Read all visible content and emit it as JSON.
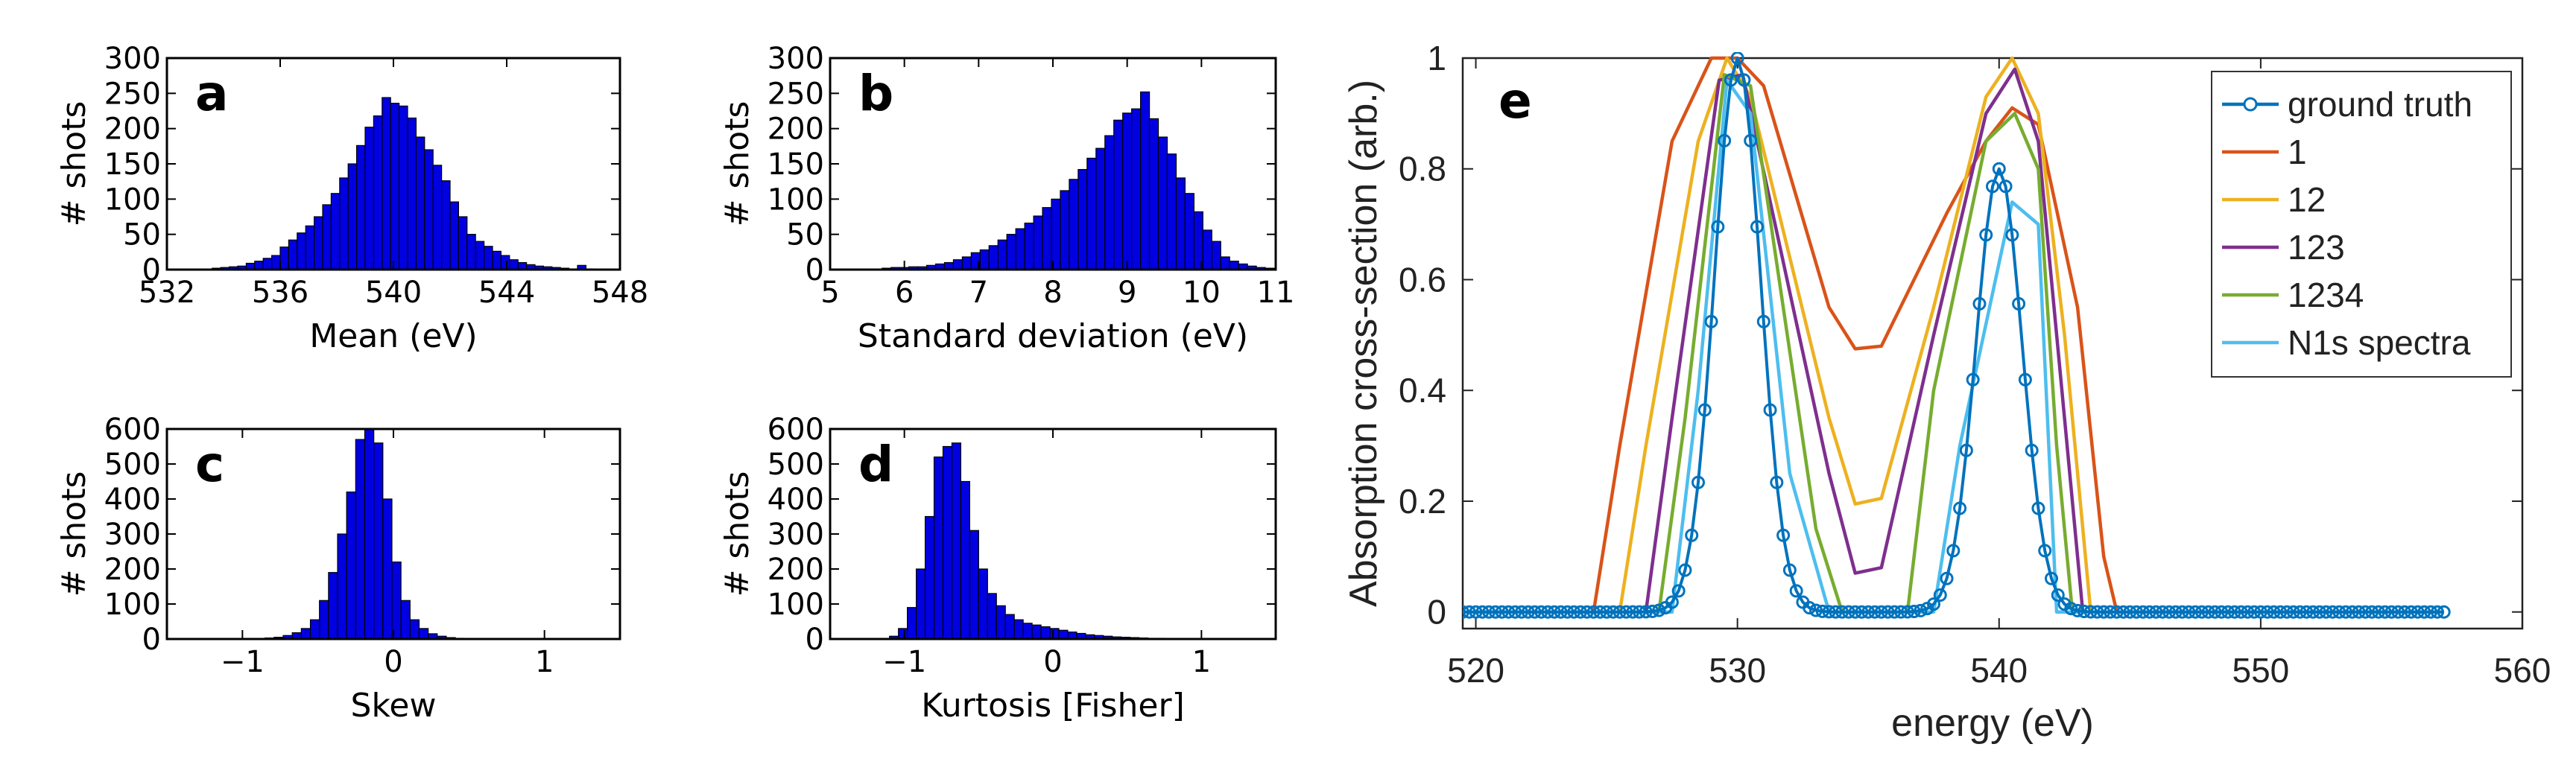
{
  "chart_data": [
    {
      "id": "a",
      "type": "bar",
      "panel_label": "a",
      "xlabel": "Mean (eV)",
      "ylabel": "# shots",
      "xlim": [
        532,
        548
      ],
      "ylim": [
        0,
        300
      ],
      "xticks": [
        "532",
        "536",
        "540",
        "544",
        "548"
      ],
      "yticks": [
        "0",
        "50",
        "100",
        "150",
        "200",
        "250",
        "300"
      ],
      "bin_start": 533.6,
      "bin_width": 0.3,
      "values": [
        2,
        3,
        4,
        5,
        9,
        12,
        16,
        20,
        32,
        42,
        52,
        62,
        75,
        92,
        108,
        130,
        150,
        176,
        202,
        218,
        244,
        236,
        232,
        215,
        188,
        170,
        148,
        126,
        96,
        75,
        50,
        40,
        33,
        26,
        20,
        14,
        10,
        7,
        5,
        4,
        3,
        2,
        1,
        6,
        1
      ]
    },
    {
      "id": "b",
      "type": "bar",
      "panel_label": "b",
      "xlabel": "Standard deviation (eV)",
      "ylabel": "# shots",
      "xlim": [
        5,
        11
      ],
      "ylim": [
        0,
        300
      ],
      "xticks": [
        "5",
        "6",
        "7",
        "8",
        "9",
        "10",
        "11"
      ],
      "yticks": [
        "0",
        "50",
        "100",
        "150",
        "200",
        "250",
        "300"
      ],
      "bin_start": 5.7,
      "bin_width": 0.12,
      "values": [
        2,
        3,
        3,
        4,
        4,
        6,
        8,
        10,
        14,
        18,
        24,
        28,
        34,
        42,
        50,
        58,
        66,
        76,
        88,
        100,
        112,
        128,
        142,
        158,
        172,
        190,
        212,
        222,
        228,
        252,
        214,
        188,
        164,
        130,
        108,
        82,
        56,
        40,
        18,
        12,
        8,
        5,
        3,
        2
      ]
    },
    {
      "id": "c",
      "type": "bar",
      "panel_label": "c",
      "xlabel": "Skew",
      "ylabel": "# shots",
      "xlim": [
        -1.5,
        1.5
      ],
      "ylim": [
        0,
        600
      ],
      "xticks": [
        "-1",
        "0",
        "1"
      ],
      "yticks": [
        "0",
        "100",
        "200",
        "300",
        "400",
        "500",
        "600"
      ],
      "bin_start": -0.85,
      "bin_width": 0.06,
      "values": [
        3,
        5,
        10,
        18,
        30,
        55,
        110,
        190,
        300,
        420,
        570,
        600,
        560,
        400,
        220,
        110,
        55,
        30,
        15,
        8,
        4,
        2
      ]
    },
    {
      "id": "d",
      "type": "bar",
      "panel_label": "d",
      "xlabel": "Kurtosis [Fisher]",
      "ylabel": "# shots",
      "xlim": [
        -1.5,
        1.5
      ],
      "ylim": [
        0,
        600
      ],
      "xticks": [
        "-1",
        "0",
        "1"
      ],
      "yticks": [
        "0",
        "100",
        "200",
        "300",
        "400",
        "500",
        "600"
      ],
      "bin_start": -1.1,
      "bin_width": 0.06,
      "values": [
        8,
        30,
        90,
        200,
        350,
        520,
        550,
        560,
        450,
        310,
        200,
        130,
        95,
        70,
        55,
        45,
        40,
        35,
        30,
        25,
        20,
        16,
        12,
        10,
        8,
        6,
        5,
        4,
        3,
        2,
        2,
        1
      ]
    },
    {
      "id": "e",
      "type": "line",
      "panel_label": "e",
      "xlabel": "energy (eV)",
      "ylabel": "Absorption cross-section (arb.)",
      "xlim": [
        519.5,
        560
      ],
      "ylim": [
        -0.03,
        1.0
      ],
      "xticks": [
        "520",
        "530",
        "540",
        "550",
        "560"
      ],
      "yticks": [
        "0",
        "0.2",
        "0.4",
        "0.6",
        "0.8",
        "1"
      ],
      "legend_position": "top-right",
      "series": [
        {
          "name": "1",
          "color": "#d95319",
          "markers": false,
          "x": [
            519.5,
            524.5,
            525.5,
            527.5,
            529,
            530,
            531,
            533.5,
            534.5,
            535.5,
            538,
            539.5,
            540.5,
            541.5,
            543,
            544,
            544.5,
            557
          ],
          "y": [
            0,
            0,
            0.3,
            0.85,
            1.0,
            1.0,
            0.95,
            0.55,
            0.475,
            0.48,
            0.72,
            0.85,
            0.91,
            0.88,
            0.55,
            0.1,
            0,
            0
          ]
        },
        {
          "name": "12",
          "color": "#edb120",
          "markers": false,
          "x": [
            519.5,
            525.5,
            526.5,
            528.5,
            529.6,
            530.5,
            533.5,
            534.5,
            535.5,
            537.5,
            539.5,
            540.5,
            541.5,
            542.5,
            543.5,
            557
          ],
          "y": [
            0,
            0,
            0.3,
            0.85,
            1.0,
            0.93,
            0.35,
            0.195,
            0.205,
            0.55,
            0.93,
            1.0,
            0.9,
            0.5,
            0,
            0
          ]
        },
        {
          "name": "123",
          "color": "#7e2f8e",
          "markers": false,
          "x": [
            519.5,
            526.5,
            527.5,
            529.3,
            530.2,
            533.5,
            534.5,
            535.5,
            537.5,
            539.5,
            540.6,
            541.5,
            542.5,
            543.2,
            557
          ],
          "y": [
            0,
            0,
            0.35,
            0.96,
            0.97,
            0.25,
            0.07,
            0.08,
            0.5,
            0.9,
            0.98,
            0.85,
            0.35,
            0,
            0
          ]
        },
        {
          "name": "1234",
          "color": "#77ac30",
          "markers": false,
          "x": [
            519.5,
            527,
            528,
            529.5,
            530.5,
            533,
            534,
            536.5,
            537.5,
            539.5,
            540.6,
            541.5,
            542.2,
            542.8,
            557
          ],
          "y": [
            0,
            0,
            0.35,
            0.97,
            0.95,
            0.15,
            0,
            0,
            0.4,
            0.85,
            0.9,
            0.8,
            0.3,
            0,
            0
          ]
        },
        {
          "name": "N1s spectra",
          "color": "#4dbeee",
          "markers": false,
          "x": [
            519.5,
            527.5,
            528.5,
            529.6,
            530.5,
            532,
            533.5,
            537.5,
            538.5,
            540.5,
            541.5,
            542.2,
            557
          ],
          "y": [
            0,
            0,
            0.4,
            0.96,
            0.9,
            0.25,
            0,
            0,
            0.3,
            0.74,
            0.7,
            0,
            0
          ]
        },
        {
          "name": "ground truth",
          "color": "#0072bd",
          "markers": true,
          "x_start": 519.5,
          "x_step": 0.25,
          "peaks": [
            {
              "center": 530.0,
              "amplitude": 1.0,
              "sigma": 0.88
            },
            {
              "center": 540.0,
              "amplitude": 0.8,
              "sigma": 0.88
            }
          ],
          "x_end": 557.0
        }
      ]
    }
  ]
}
